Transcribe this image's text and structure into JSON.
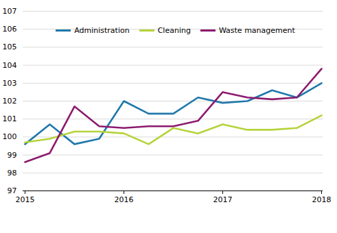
{
  "chart_data": {
    "type": "line",
    "categories": [
      "2015",
      null,
      null,
      null,
      "2016",
      null,
      null,
      null,
      "2017",
      null,
      null,
      null,
      "2018"
    ],
    "series": [
      {
        "name": "Administration",
        "color": "#1f78aa",
        "values": [
          99.6,
          100.7,
          99.6,
          99.9,
          102.0,
          101.3,
          101.3,
          102.2,
          101.9,
          102.0,
          102.6,
          102.2,
          103.0
        ]
      },
      {
        "name": "Cleaning",
        "color": "#b5d33a",
        "values": [
          99.7,
          99.9,
          100.3,
          100.3,
          100.2,
          99.6,
          100.5,
          100.2,
          100.7,
          100.4,
          100.4,
          100.5,
          101.2
        ]
      },
      {
        "name": "Waste management",
        "color": "#8c1a6e",
        "values": [
          98.6,
          99.1,
          101.7,
          100.6,
          100.5,
          100.6,
          100.6,
          100.9,
          102.5,
          102.2,
          102.1,
          102.2,
          103.8
        ]
      }
    ],
    "ylim": [
      97,
      107
    ],
    "yticks": [
      97,
      98,
      99,
      100,
      101,
      102,
      103,
      104,
      105,
      106,
      107
    ],
    "grid": true,
    "legend": "top"
  }
}
